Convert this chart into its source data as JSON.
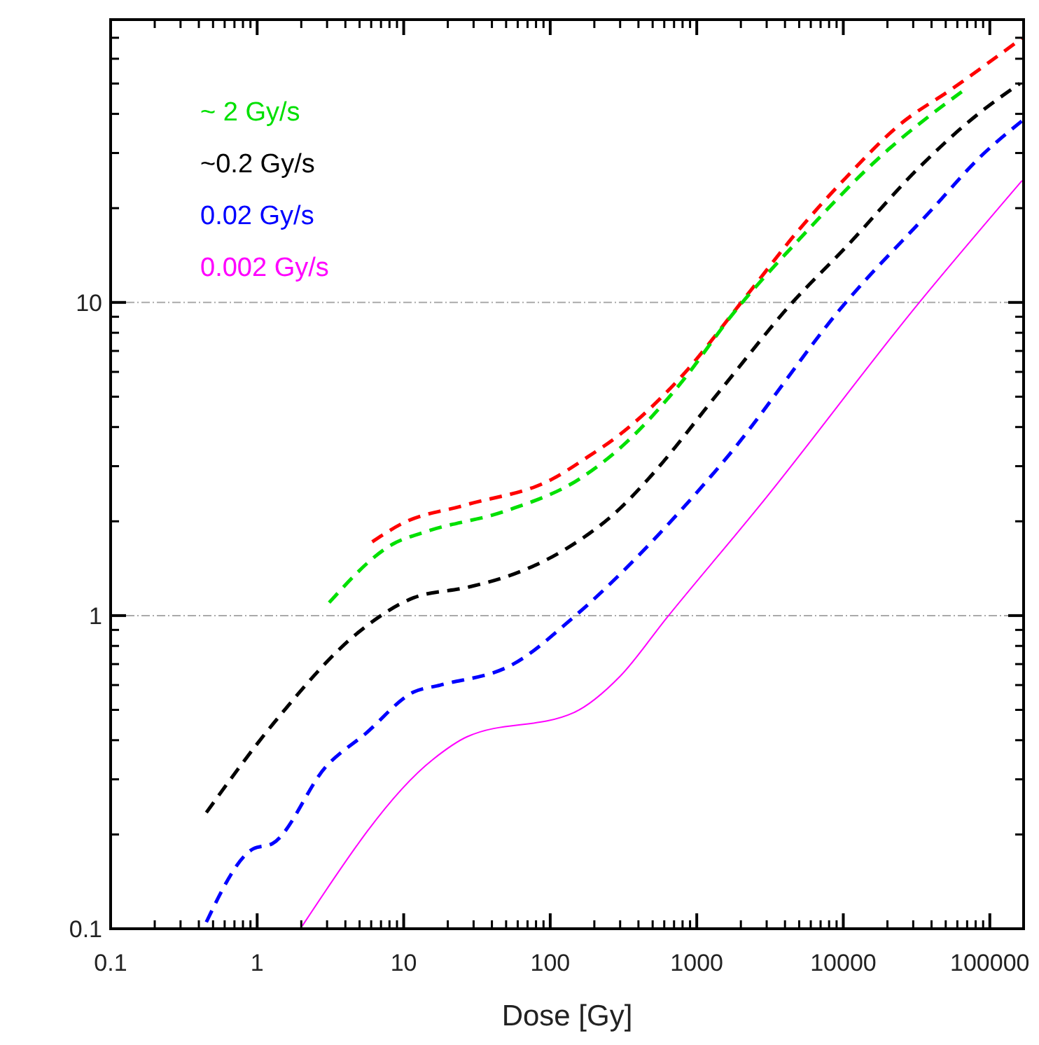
{
  "chart_data": {
    "type": "line",
    "xlabel": "Dose [Gy]",
    "log": "xy",
    "xlim": [
      0.1,
      170000
    ],
    "ylim": [
      0.1,
      80
    ],
    "xticks": [
      0.1,
      1,
      10,
      100,
      1000,
      10000,
      100000
    ],
    "yticks": [
      0.1,
      1,
      10
    ],
    "grid": "y",
    "legend": "top left",
    "series": [
      {
        "color": "#ff0000",
        "line_style": "dashed",
        "x": [
          6.1,
          9.8,
          26,
          105,
          173,
          295,
          760,
          2150,
          5000,
          10400,
          24000,
          56000,
          166000
        ],
        "values": [
          1.72,
          1.97,
          2.25,
          2.74,
          3.17,
          3.77,
          5.7,
          10.4,
          17.1,
          25,
          36.8,
          48.3,
          69.8
        ]
      },
      {
        "name": "~ 2 Gy/s",
        "color": "#00e000",
        "line_style": "dashed",
        "x": [
          3.1,
          8.4,
          14,
          50,
          160,
          330,
          760,
          1800,
          5000,
          17600,
          68000
        ],
        "values": [
          1.1,
          1.69,
          1.85,
          2.16,
          2.74,
          3.57,
          5.45,
          9.3,
          15.9,
          29,
          48
        ]
      },
      {
        "name": "~0.2 Gy/s",
        "color": "#000000",
        "line_style": "dashed",
        "x": [
          0.45,
          1.28,
          5,
          11.7,
          27,
          50,
          130,
          300,
          470,
          1430,
          4500,
          10400,
          33000,
          77000,
          160000
        ],
        "values": [
          0.235,
          0.45,
          0.89,
          1.14,
          1.23,
          1.33,
          1.64,
          2.2,
          2.74,
          5.2,
          10,
          15,
          27,
          38.8,
          50
        ]
      },
      {
        "name": "0.02 Gy/s",
        "color": "#0000ff",
        "line_style": "dashed",
        "x": [
          0.45,
          0.94,
          1.27,
          2.96,
          5.5,
          11.7,
          17.8,
          56,
          145,
          760,
          1580,
          10400,
          41000,
          85000,
          166000
        ],
        "values": [
          0.105,
          0.18,
          0.187,
          0.33,
          0.42,
          0.57,
          0.6,
          0.7,
          0.99,
          2.14,
          3.17,
          10,
          20,
          29,
          38
        ]
      },
      {
        "name": "0.002 Gy/s",
        "color": "#ff00ff",
        "line_style": "solid",
        "x": [
          2.03,
          15.8,
          27,
          145,
          300,
          620,
          2700,
          33000,
          166000
        ],
        "values": [
          0.102,
          0.347,
          0.41,
          0.49,
          0.64,
          0.98,
          2.25,
          10,
          24.5
        ]
      }
    ]
  }
}
